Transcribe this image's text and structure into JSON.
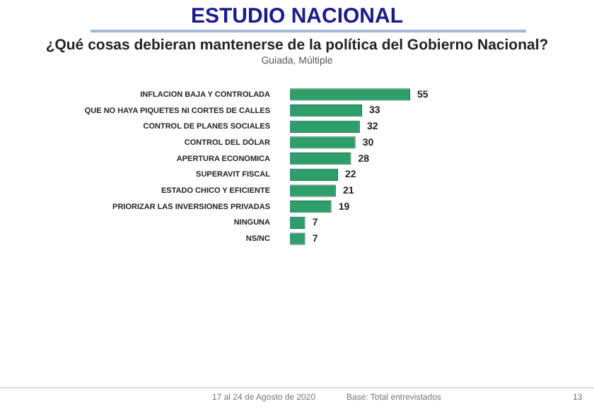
{
  "chart_data": {
    "type": "bar",
    "orientation": "horizontal",
    "title": "ESTUDIO NACIONAL",
    "subtitle": "¿Qué cosas debieran mantenerse de la política del Gobierno Nacional?",
    "categories": [
      "INFLACION BAJA Y CONTROLADA",
      "QUE NO HAYA PIQUETES NI CORTES DE CALLES",
      "CONTROL DE PLANES SOCIALES",
      "CONTROL DEL DÓLAR",
      "APERTURA ECONOMICA",
      "SUPERAVIT FISCAL",
      "ESTADO CHICO Y EFICIENTE",
      "PRIORIZAR LAS INVERSIONES PRIVADAS",
      "NINGUNA",
      "NS/NC"
    ],
    "values": [
      55,
      33,
      32,
      30,
      28,
      22,
      21,
      19,
      7,
      7
    ],
    "color": "#2e9e6b",
    "data_labels": true,
    "annotations": [
      "Guiada, Múltiple",
      "17 al 24 de Agosto de 2020",
      "Base: Total entrevistados",
      "13"
    ]
  }
}
